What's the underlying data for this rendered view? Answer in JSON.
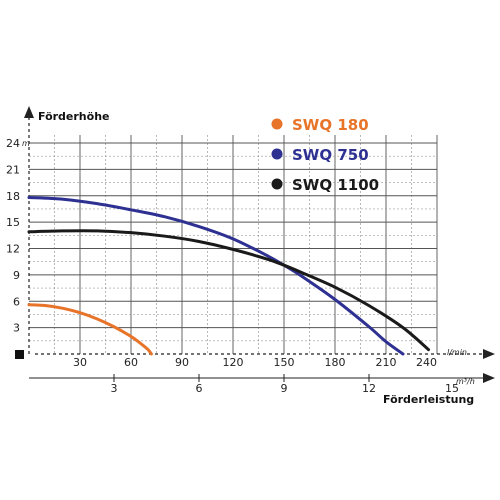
{
  "chart_data": {
    "type": "line",
    "ylabel": "Förderhöhe",
    "y_unit": "m",
    "xlabel": "Förderleistung",
    "x_unit_primary": "l/min",
    "x_unit_secondary": "m³/h",
    "x_ticks": [
      "30",
      "60",
      "90",
      "120",
      "150",
      "180",
      "210",
      "240"
    ],
    "x2_ticks": [
      "3",
      "6",
      "9",
      "12",
      "15"
    ],
    "y_ticks": [
      "3",
      "6",
      "9",
      "12",
      "15",
      "18",
      "21",
      "24"
    ],
    "xlim": [
      0,
      240
    ],
    "ylim": [
      0,
      24
    ],
    "grid": true,
    "legend_position": "top-right",
    "series": [
      {
        "name": "SWQ 180",
        "color": "#e8742a",
        "x": [
          0,
          10,
          20,
          30,
          40,
          50,
          60,
          65,
          70,
          72
        ],
        "y": [
          5.6,
          5.5,
          5.2,
          4.7,
          4.0,
          3.1,
          2.0,
          1.3,
          0.5,
          0
        ]
      },
      {
        "name": "SWQ 750",
        "color": "#2e3192",
        "x": [
          0,
          20,
          40,
          60,
          80,
          100,
          120,
          140,
          150,
          160,
          180,
          200,
          210,
          220
        ],
        "y": [
          17.8,
          17.6,
          17.1,
          16.4,
          15.6,
          14.5,
          13.1,
          11.2,
          10.1,
          8.9,
          6.2,
          3.1,
          1.4,
          0
        ]
      },
      {
        "name": "SWQ 1100",
        "color": "#1a1a1a",
        "x": [
          0,
          20,
          40,
          60,
          80,
          100,
          120,
          140,
          150,
          160,
          180,
          200,
          220,
          235
        ],
        "y": [
          13.9,
          14.0,
          14.0,
          13.8,
          13.4,
          12.8,
          11.9,
          10.8,
          10.1,
          9.3,
          7.6,
          5.5,
          3.0,
          0.5
        ]
      }
    ]
  }
}
